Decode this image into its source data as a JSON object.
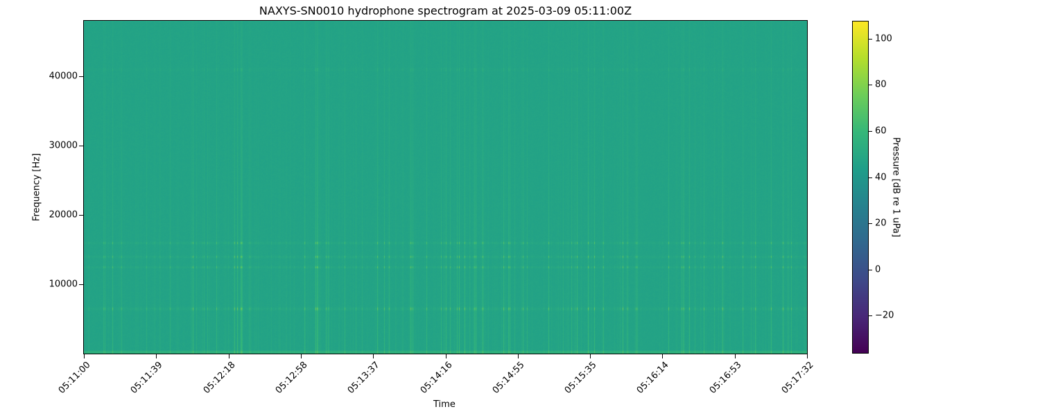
{
  "chart_data": {
    "type": "heatmap",
    "title": "NAXYS-SN0010 hydrophone spectrogram at 2025-03-09 05:11:00Z",
    "xlabel": "Time",
    "ylabel": "Frequency [Hz]",
    "x_tick_labels": [
      "05:11:00",
      "05:11:39",
      "05:12:18",
      "05:12:58",
      "05:13:37",
      "05:14:16",
      "05:14:55",
      "05:15:35",
      "05:16:14",
      "05:16:53",
      "05:17:32"
    ],
    "xlim": [
      "05:11:00",
      "05:17:32"
    ],
    "y_ticks": [
      10000,
      20000,
      30000,
      40000
    ],
    "ylim": [
      0,
      48000
    ],
    "colorbar": {
      "label": "Pressure [dB re 1 uPa]",
      "ticks": [
        -20,
        0,
        20,
        40,
        60,
        80,
        100
      ],
      "range": [
        -36.5,
        107.8
      ],
      "colormap": "viridis"
    },
    "background_level_db": 47,
    "tonal_bands_hz": [
      6500,
      12500,
      14000,
      16000,
      41000
    ],
    "grid": false
  }
}
